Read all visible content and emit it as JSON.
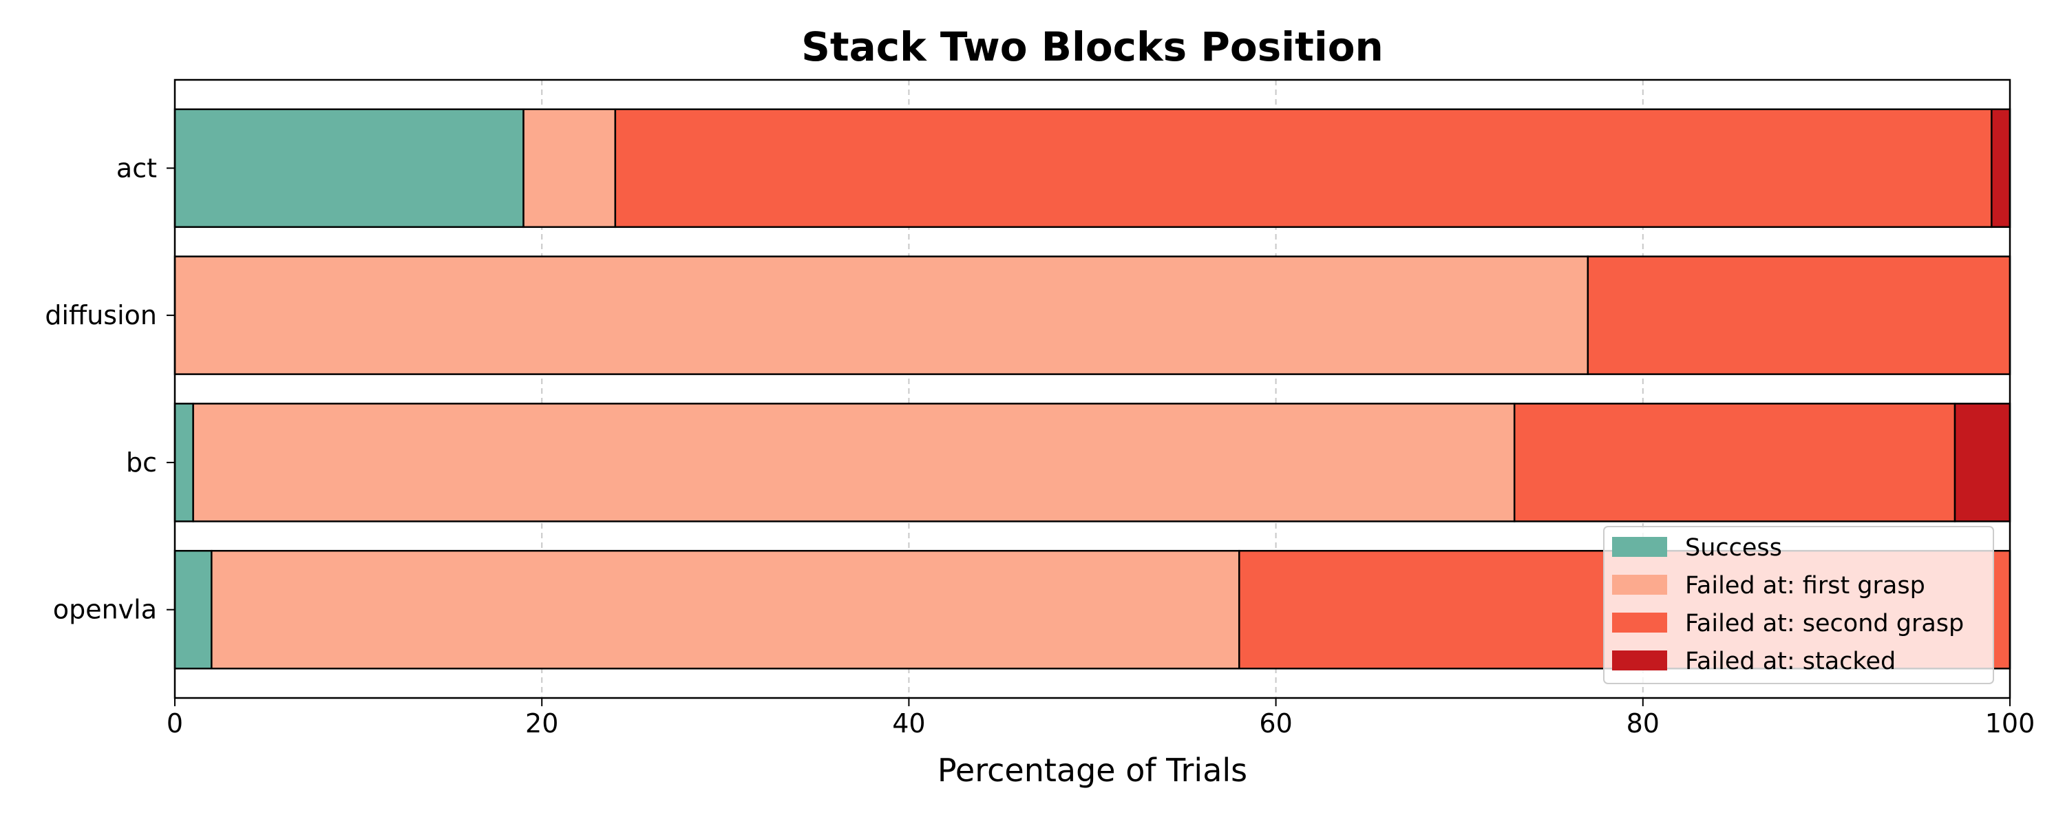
{
  "chart_data": {
    "type": "bar",
    "orientation": "horizontal",
    "stacked": true,
    "title": "Stack Two Blocks Position",
    "xlabel": "Percentage of Trials",
    "ylabel": "",
    "xlim": [
      0,
      100
    ],
    "xticks": [
      0,
      20,
      40,
      60,
      80,
      100
    ],
    "grid": "x-dashed",
    "legend_position": "lower-right",
    "categories": [
      "act",
      "diffusion",
      "bc",
      "openvla"
    ],
    "series": [
      {
        "name": "Success",
        "color": "#69b3a2",
        "values": [
          19,
          0,
          1,
          2
        ]
      },
      {
        "name": "Failed at: first grasp",
        "color": "#fcaa8e",
        "values": [
          5,
          77,
          72,
          56
        ]
      },
      {
        "name": "Failed at: second grasp",
        "color": "#f85f45",
        "values": [
          75,
          23,
          24,
          42
        ]
      },
      {
        "name": "Failed at: stacked",
        "color": "#c4191e",
        "values": [
          1,
          0,
          3,
          0
        ]
      }
    ]
  }
}
